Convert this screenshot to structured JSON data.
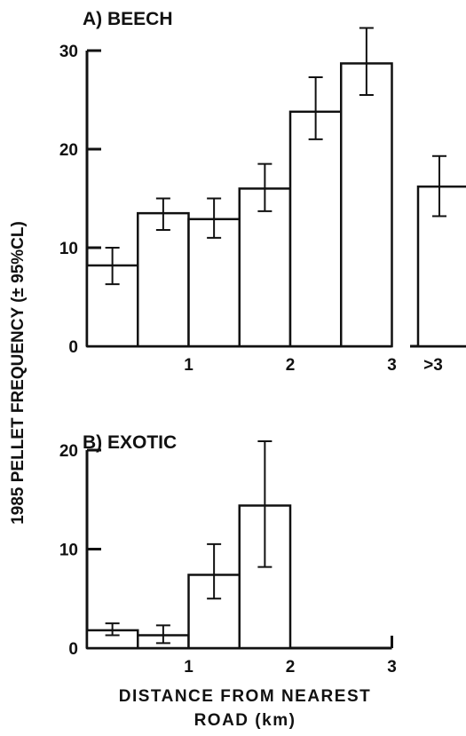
{
  "ylabel": "1985 PELLET FREQUENCY (± 95%CL)",
  "xlabel_line1": "DISTANCE FROM NEAREST",
  "xlabel_line2": "ROAD (km)",
  "chart_data": [
    {
      "type": "bar",
      "title": "A) BEECH",
      "ylim": [
        0,
        30
      ],
      "yticks": [
        0,
        10,
        20,
        30
      ],
      "xticks": [
        "1",
        "2",
        "3"
      ],
      "extra_tick": ">3",
      "bin_width_km": 0.5,
      "bars": [
        {
          "x0": 0.0,
          "value": 8.2,
          "lo": 6.3,
          "hi": 10.0
        },
        {
          "x0": 0.5,
          "value": 13.5,
          "lo": 11.8,
          "hi": 15.0
        },
        {
          "x0": 1.0,
          "value": 12.9,
          "lo": 11.0,
          "hi": 15.0
        },
        {
          "x0": 1.5,
          "value": 16.0,
          "lo": 13.7,
          "hi": 18.5
        },
        {
          "x0": 2.0,
          "value": 23.8,
          "lo": 21.0,
          "hi": 27.3
        },
        {
          "x0": 2.5,
          "value": 28.7,
          "lo": 25.5,
          "hi": 32.3
        }
      ],
      "extra_bar": {
        "label": ">3",
        "value": 16.2,
        "lo": 13.2,
        "hi": 19.3
      }
    },
    {
      "type": "bar",
      "title": "B) EXOTIC",
      "ylim": [
        0,
        20
      ],
      "yticks": [
        0,
        10,
        20
      ],
      "xticks": [
        "1",
        "2",
        "3"
      ],
      "bin_width_km": 0.5,
      "bars": [
        {
          "x0": 0.0,
          "value": 1.8,
          "lo": 1.3,
          "hi": 2.5
        },
        {
          "x0": 0.5,
          "value": 1.3,
          "lo": 0.5,
          "hi": 2.3
        },
        {
          "x0": 1.0,
          "value": 7.4,
          "lo": 5.0,
          "hi": 10.5
        },
        {
          "x0": 1.5,
          "value": 14.4,
          "lo": 8.2,
          "hi": 20.9
        }
      ]
    }
  ]
}
